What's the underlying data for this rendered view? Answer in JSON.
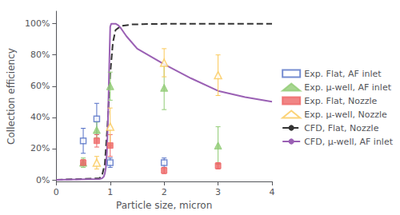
{
  "chart_data": {
    "type": "scatter",
    "xlabel": "Particle size, micron",
    "ylabel": "Collection efficiency",
    "xlim": [
      0,
      4
    ],
    "ylim": [
      -0.01,
      1.08
    ],
    "xticks": [
      0,
      1,
      2,
      3,
      4
    ],
    "yticks": [
      {
        "value": 0,
        "label": "0%"
      },
      {
        "value": 0.2,
        "label": "20%"
      },
      {
        "value": 0.4,
        "label": "40%"
      },
      {
        "value": 0.6,
        "label": "60%"
      },
      {
        "value": 0.8,
        "label": "80%"
      },
      {
        "value": 1.0,
        "label": "100%"
      }
    ],
    "grid": false,
    "legend": "right",
    "series": [
      {
        "name": "Exp. Flat, AF inlet",
        "type": "scatter",
        "marker": "square_open",
        "color": "#5470c6",
        "x": [
          0.5,
          0.75,
          1.0,
          2.0
        ],
        "values": [
          0.25,
          0.39,
          0.11,
          0.11
        ],
        "yerr": [
          0.08,
          0.1,
          0.03,
          0.03
        ]
      },
      {
        "name": "Exp. μ-well, AF inlet",
        "type": "scatter",
        "marker": "triangle",
        "color": "#91cc75",
        "x": [
          0.5,
          0.75,
          1.0,
          2.0,
          3.0
        ],
        "values": [
          0.11,
          0.32,
          0.6,
          0.59,
          0.22
        ],
        "yerr": [
          0.03,
          0.05,
          0.09,
          0.14,
          0.12
        ]
      },
      {
        "name": "Exp. Flat, Nozzle",
        "type": "scatter",
        "marker": "square",
        "color": "#ee6666",
        "x": [
          0.5,
          0.75,
          1.0,
          2.0,
          3.0
        ],
        "values": [
          0.11,
          0.25,
          0.22,
          0.06,
          0.09
        ],
        "yerr": [
          0.02,
          0.04,
          0.07,
          0.02,
          0.02
        ]
      },
      {
        "name": "Exp. μ-well, Nozzle",
        "type": "scatter",
        "marker": "triangle_open",
        "color": "#fac858",
        "x": [
          0.75,
          1.0,
          2.0,
          3.0
        ],
        "values": [
          0.11,
          0.34,
          0.75,
          0.67
        ],
        "yerr": [
          0.04,
          0.12,
          0.09,
          0.13
        ]
      },
      {
        "name": "CFD, Flat, Nozzle",
        "type": "line",
        "line_style": "dashed",
        "color": "#333333",
        "x": [
          0.0,
          0.8,
          0.85,
          0.9,
          0.95,
          1.0,
          1.05,
          1.1,
          1.2,
          1.4,
          1.6,
          1.8,
          2.0,
          2.5,
          3.0,
          3.5,
          4.0
        ],
        "values": [
          0.0,
          0.01,
          0.03,
          0.1,
          0.35,
          0.68,
          0.88,
          0.96,
          0.985,
          0.995,
          0.997,
          0.998,
          0.999,
          1.0,
          1.0,
          1.0,
          1.0
        ]
      },
      {
        "name": "CFD, μ-well, AF inlet",
        "type": "line",
        "line_style": "solid",
        "color": "#9a60b4",
        "x": [
          0.0,
          0.8,
          0.85,
          0.88,
          0.9,
          0.92,
          0.94,
          0.96,
          0.98,
          1.0,
          1.02,
          1.05,
          1.08,
          1.1,
          1.15,
          1.2,
          1.3,
          1.5,
          2.0,
          2.5,
          3.0,
          3.5,
          4.0
        ],
        "values": [
          0.0,
          0.005,
          0.01,
          0.02,
          0.04,
          0.08,
          0.18,
          0.4,
          0.7,
          0.98,
          1.0,
          1.0,
          1.0,
          1.0,
          0.99,
          0.97,
          0.92,
          0.84,
          0.74,
          0.65,
          0.57,
          0.53,
          0.5
        ]
      }
    ]
  }
}
